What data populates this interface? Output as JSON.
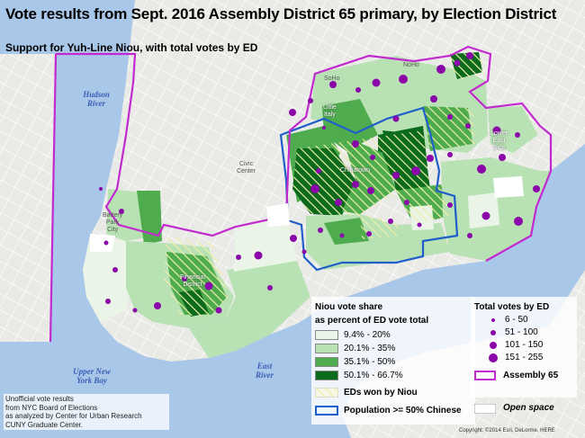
{
  "map": {
    "title": "Vote results from Sept. 2016 Assembly District 65 primary, by Election District",
    "subtitle": "Support for Yuh-Line Niou, with total votes by ED",
    "colors": {
      "water": "#a9c7e9",
      "land": "#e9e9e6",
      "share_1": "#eaf5e8",
      "share_2": "#b8e2b4",
      "share_3": "#4eac4e",
      "share_4": "#0b6a1c",
      "niou_won_hatch": "#f0eea8",
      "chinese_outline": "#1f5fc9",
      "assembly_outline": "#c22ad0",
      "dots": "#8a06a8"
    },
    "water_labels": {
      "hudson": "Hudson\nRiver",
      "upper_bay": "Upper New\nYork Bay",
      "east_river": "East\nRiver"
    },
    "place_labels": {
      "noho": "NoHo",
      "soho": "SoHo",
      "little_italy": "Little\nItaly",
      "lower_east_side": "Lower\nEast\nSide",
      "civic_center": "Civic\nCenter",
      "chinatown": "Chinatown",
      "battery_park_city": "Battery\nPark\nCity",
      "financial_district": "Financial\nDistrict"
    },
    "legend_share": {
      "heading_1": "Niou vote share",
      "heading_2": "as percent of ED vote total",
      "bins": [
        "9.4% - 20%",
        "20.1% - 35%",
        "35.1% - 50%",
        "50.1% - 66.7%"
      ],
      "won_label": "EDs won by Niou",
      "chinese_label": "Population >= 50% Chinese"
    },
    "legend_votes": {
      "heading": "Total votes by ED",
      "bins": [
        "6 - 50",
        "51 - 100",
        "101 - 150",
        "151 - 255"
      ],
      "assembly_label": "Assembly 65",
      "open_space_label": "Open space"
    },
    "source_note": "Unofficial vote results\nfrom NYC Board of Elections\nas analyzed by Center for Urban Research\nCUNY Graduate Center.",
    "copyright": "Copyright: ©2014 Esri, DeLorme, HERE"
  }
}
